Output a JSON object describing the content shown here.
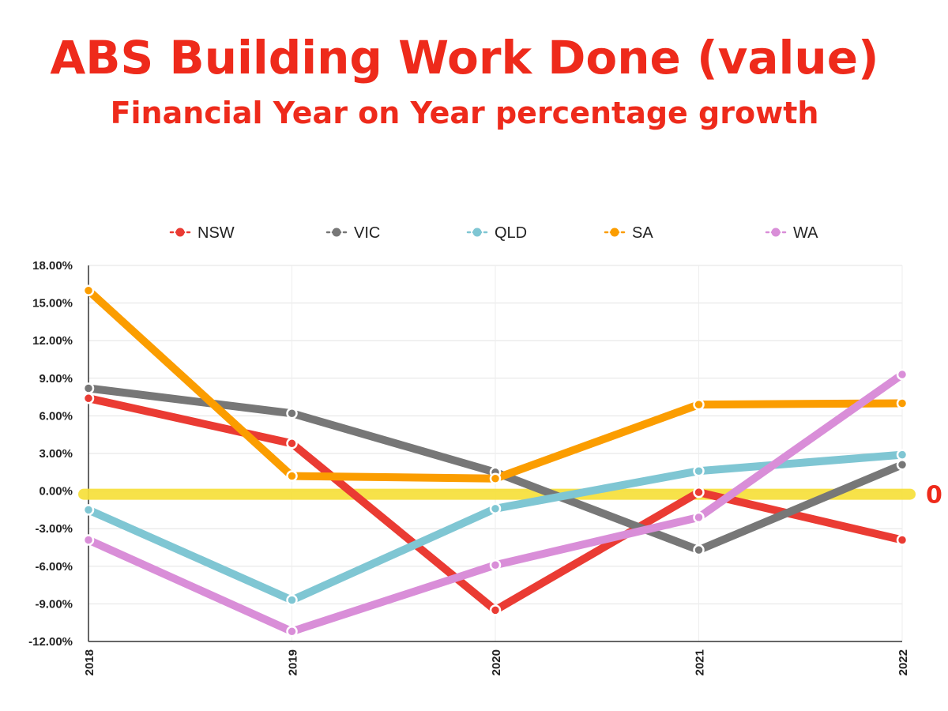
{
  "chart_data": {
    "type": "line",
    "title": "ABS Building Work Done (value)",
    "subtitle": "Financial Year on Year percentage growth",
    "x": [
      "2018",
      "2019",
      "2020",
      "2021",
      "2022"
    ],
    "ylim": [
      -12,
      18
    ],
    "yticks": [
      18,
      15,
      12,
      9,
      6,
      3,
      0,
      -3,
      -6,
      -9,
      -12
    ],
    "ytick_labels": [
      "18.00%",
      "15.00%",
      "12.00%",
      "9.00%",
      "6.00%",
      "3.00%",
      "0.00%",
      "-3.00%",
      "-6.00%",
      "-9.00%",
      "-12.00%"
    ],
    "grid": true,
    "legend_position": "top",
    "series": [
      {
        "name": "NSW",
        "color": "#ea3b33",
        "values": [
          7.4,
          3.8,
          -9.5,
          -0.1,
          -3.9
        ]
      },
      {
        "name": "VIC",
        "color": "#777777",
        "values": [
          8.2,
          6.2,
          1.5,
          -4.7,
          2.1
        ]
      },
      {
        "name": "QLD",
        "color": "#7fc6d3",
        "values": [
          -1.5,
          -8.7,
          -1.4,
          1.6,
          2.9
        ]
      },
      {
        "name": "SA",
        "color": "#fb9d00",
        "values": [
          16.0,
          1.2,
          1.0,
          6.9,
          7.0
        ]
      },
      {
        "name": "WA",
        "color": "#d98ed8",
        "values": [
          -3.9,
          -11.2,
          -5.9,
          -2.1,
          9.3
        ]
      }
    ],
    "annotations": [
      {
        "type": "reference-line",
        "y": 0,
        "color": "#f7e03a",
        "label": "0",
        "label_color": "#ee2a1b"
      }
    ]
  }
}
